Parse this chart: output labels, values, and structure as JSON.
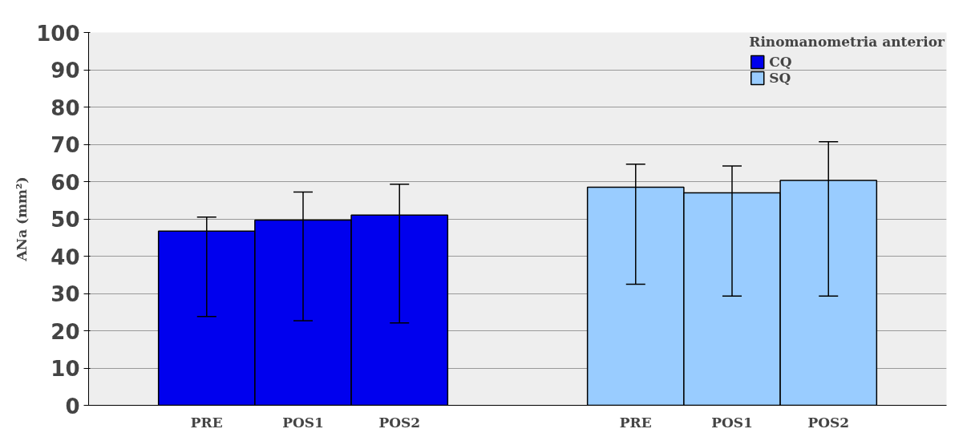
{
  "chart_data": {
    "type": "bar",
    "ylabel": "ANa (mm²)",
    "legend_title": "Rinomanometria anterior",
    "categories": [
      "PRE",
      "POS1",
      "POS2",
      "PRE",
      "POS1",
      "POS2"
    ],
    "series": [
      {
        "name": "CQ",
        "color": "#0000ee",
        "values": [
          46.7,
          49.7,
          51,
          null,
          null,
          null
        ],
        "errors": [
          [
            23.8,
            50.5
          ],
          [
            22.7,
            57.2
          ],
          [
            22.1,
            59.3
          ],
          null,
          null,
          null
        ]
      },
      {
        "name": "SQ",
        "color": "#99ccff",
        "values": [
          null,
          null,
          null,
          58.5,
          57,
          60.3
        ],
        "errors": [
          null,
          null,
          null,
          [
            32.5,
            64.7
          ],
          [
            29.3,
            64.2
          ],
          [
            29.3,
            70.7
          ]
        ]
      }
    ],
    "ylim": [
      0,
      100
    ],
    "yticks": [
      0,
      10,
      20,
      30,
      40,
      50,
      60,
      70,
      80,
      90,
      100
    ],
    "grid": "y",
    "legend": "top right"
  }
}
